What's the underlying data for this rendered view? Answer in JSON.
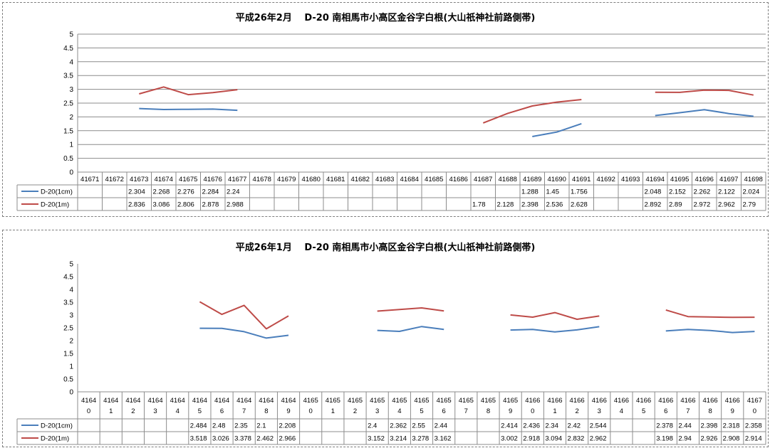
{
  "chart_data": [
    {
      "type": "line",
      "title": "平成26年2月　 D-20 南相馬市小高区金谷字白根(大山祇神社前路側帯)",
      "ylim": [
        0,
        5
      ],
      "yticks": [
        "0",
        "0.5",
        "1",
        "1.5",
        "2",
        "2.5",
        "3",
        "3.5",
        "4",
        "4.5",
        "5"
      ],
      "grid": true,
      "legend": "data-table",
      "categories": [
        "41671",
        "41672",
        "41673",
        "41674",
        "41675",
        "41676",
        "41677",
        "41678",
        "41679",
        "41680",
        "41681",
        "41682",
        "41683",
        "41684",
        "41685",
        "41686",
        "41687",
        "41688",
        "41689",
        "41690",
        "41691",
        "41692",
        "41693",
        "41694",
        "41695",
        "41696",
        "41697",
        "41698"
      ],
      "series": [
        {
          "name": "D-20(1cm)",
          "color": "#4a7ebb",
          "values": [
            null,
            null,
            2.304,
            2.268,
            2.276,
            2.284,
            2.24,
            null,
            null,
            null,
            null,
            null,
            null,
            null,
            null,
            null,
            null,
            null,
            1.288,
            1.45,
            1.756,
            null,
            null,
            2.048,
            2.152,
            2.262,
            2.122,
            2.024
          ]
        },
        {
          "name": "D-20(1m)",
          "color": "#be4b48",
          "values": [
            null,
            null,
            2.836,
            3.086,
            2.806,
            2.878,
            2.988,
            null,
            null,
            null,
            null,
            null,
            null,
            null,
            null,
            null,
            1.78,
            2.128,
            2.398,
            2.536,
            2.628,
            null,
            null,
            2.892,
            2.89,
            2.972,
            2.962,
            2.79
          ]
        }
      ]
    },
    {
      "type": "line",
      "title": "平成26年1月　 D-20 南相馬市小高区金谷字白根(大山祇神社前路側帯)",
      "ylim": [
        0,
        5
      ],
      "yticks": [
        "0",
        "0.5",
        "1",
        "1.5",
        "2",
        "2.5",
        "3",
        "3.5",
        "4",
        "4.5",
        "5"
      ],
      "grid": false,
      "legend": "data-table",
      "categories": [
        "41640",
        "41641",
        "41642",
        "41643",
        "41644",
        "41645",
        "41646",
        "41647",
        "41648",
        "41649",
        "41650",
        "41651",
        "41652",
        "41653",
        "41654",
        "41655",
        "41656",
        "41657",
        "41658",
        "41659",
        "41660",
        "41661",
        "41662",
        "41663",
        "41664",
        "41665",
        "41666",
        "41667",
        "41668",
        "41669",
        "41670"
      ],
      "series": [
        {
          "name": "D-20(1cm)",
          "color": "#4a7ebb",
          "values": [
            null,
            null,
            null,
            null,
            null,
            2.484,
            2.48,
            2.35,
            2.1,
            2.208,
            null,
            null,
            null,
            2.4,
            2.362,
            2.55,
            2.44,
            null,
            null,
            2.414,
            2.436,
            2.34,
            2.42,
            2.544,
            null,
            null,
            2.378,
            2.44,
            2.398,
            2.318,
            2.358
          ]
        },
        {
          "name": "D-20(1m)",
          "color": "#be4b48",
          "values": [
            null,
            null,
            null,
            null,
            null,
            3.518,
            3.026,
            3.378,
            2.462,
            2.966,
            null,
            null,
            null,
            3.152,
            3.214,
            3.278,
            3.162,
            null,
            null,
            3.002,
            2.918,
            3.094,
            2.832,
            2.962,
            null,
            null,
            3.198,
            2.94,
            2.926,
            2.908,
            2.914
          ]
        }
      ]
    }
  ]
}
